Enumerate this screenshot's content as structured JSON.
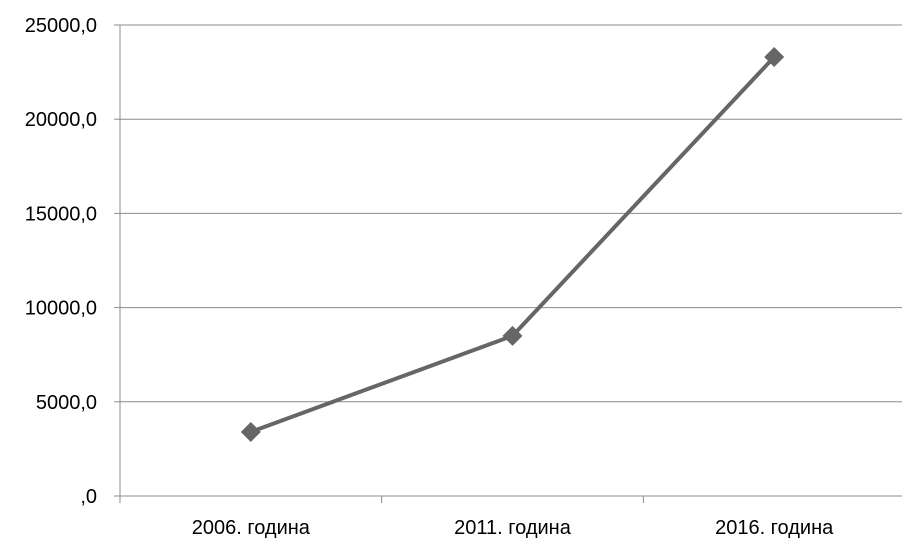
{
  "chart_data": {
    "type": "line",
    "categories": [
      "2006. година",
      "2011. година",
      "2016. година"
    ],
    "series": [
      {
        "values": [
          3400,
          8500,
          23300
        ],
        "color": "#666666",
        "marker": "diamond"
      }
    ],
    "ylim": [
      0,
      25000
    ],
    "yticks": [
      0,
      5000,
      10000,
      15000,
      20000,
      25000
    ],
    "ytick_labels": [
      ",0",
      "5000,0",
      "10000,0",
      "15000,0",
      "20000,0",
      "25000,0"
    ],
    "grid": true,
    "legend": "none",
    "colors": {
      "gridline": "#8c8c8c",
      "axis": "#8c8c8c",
      "series": "#666666"
    }
  }
}
